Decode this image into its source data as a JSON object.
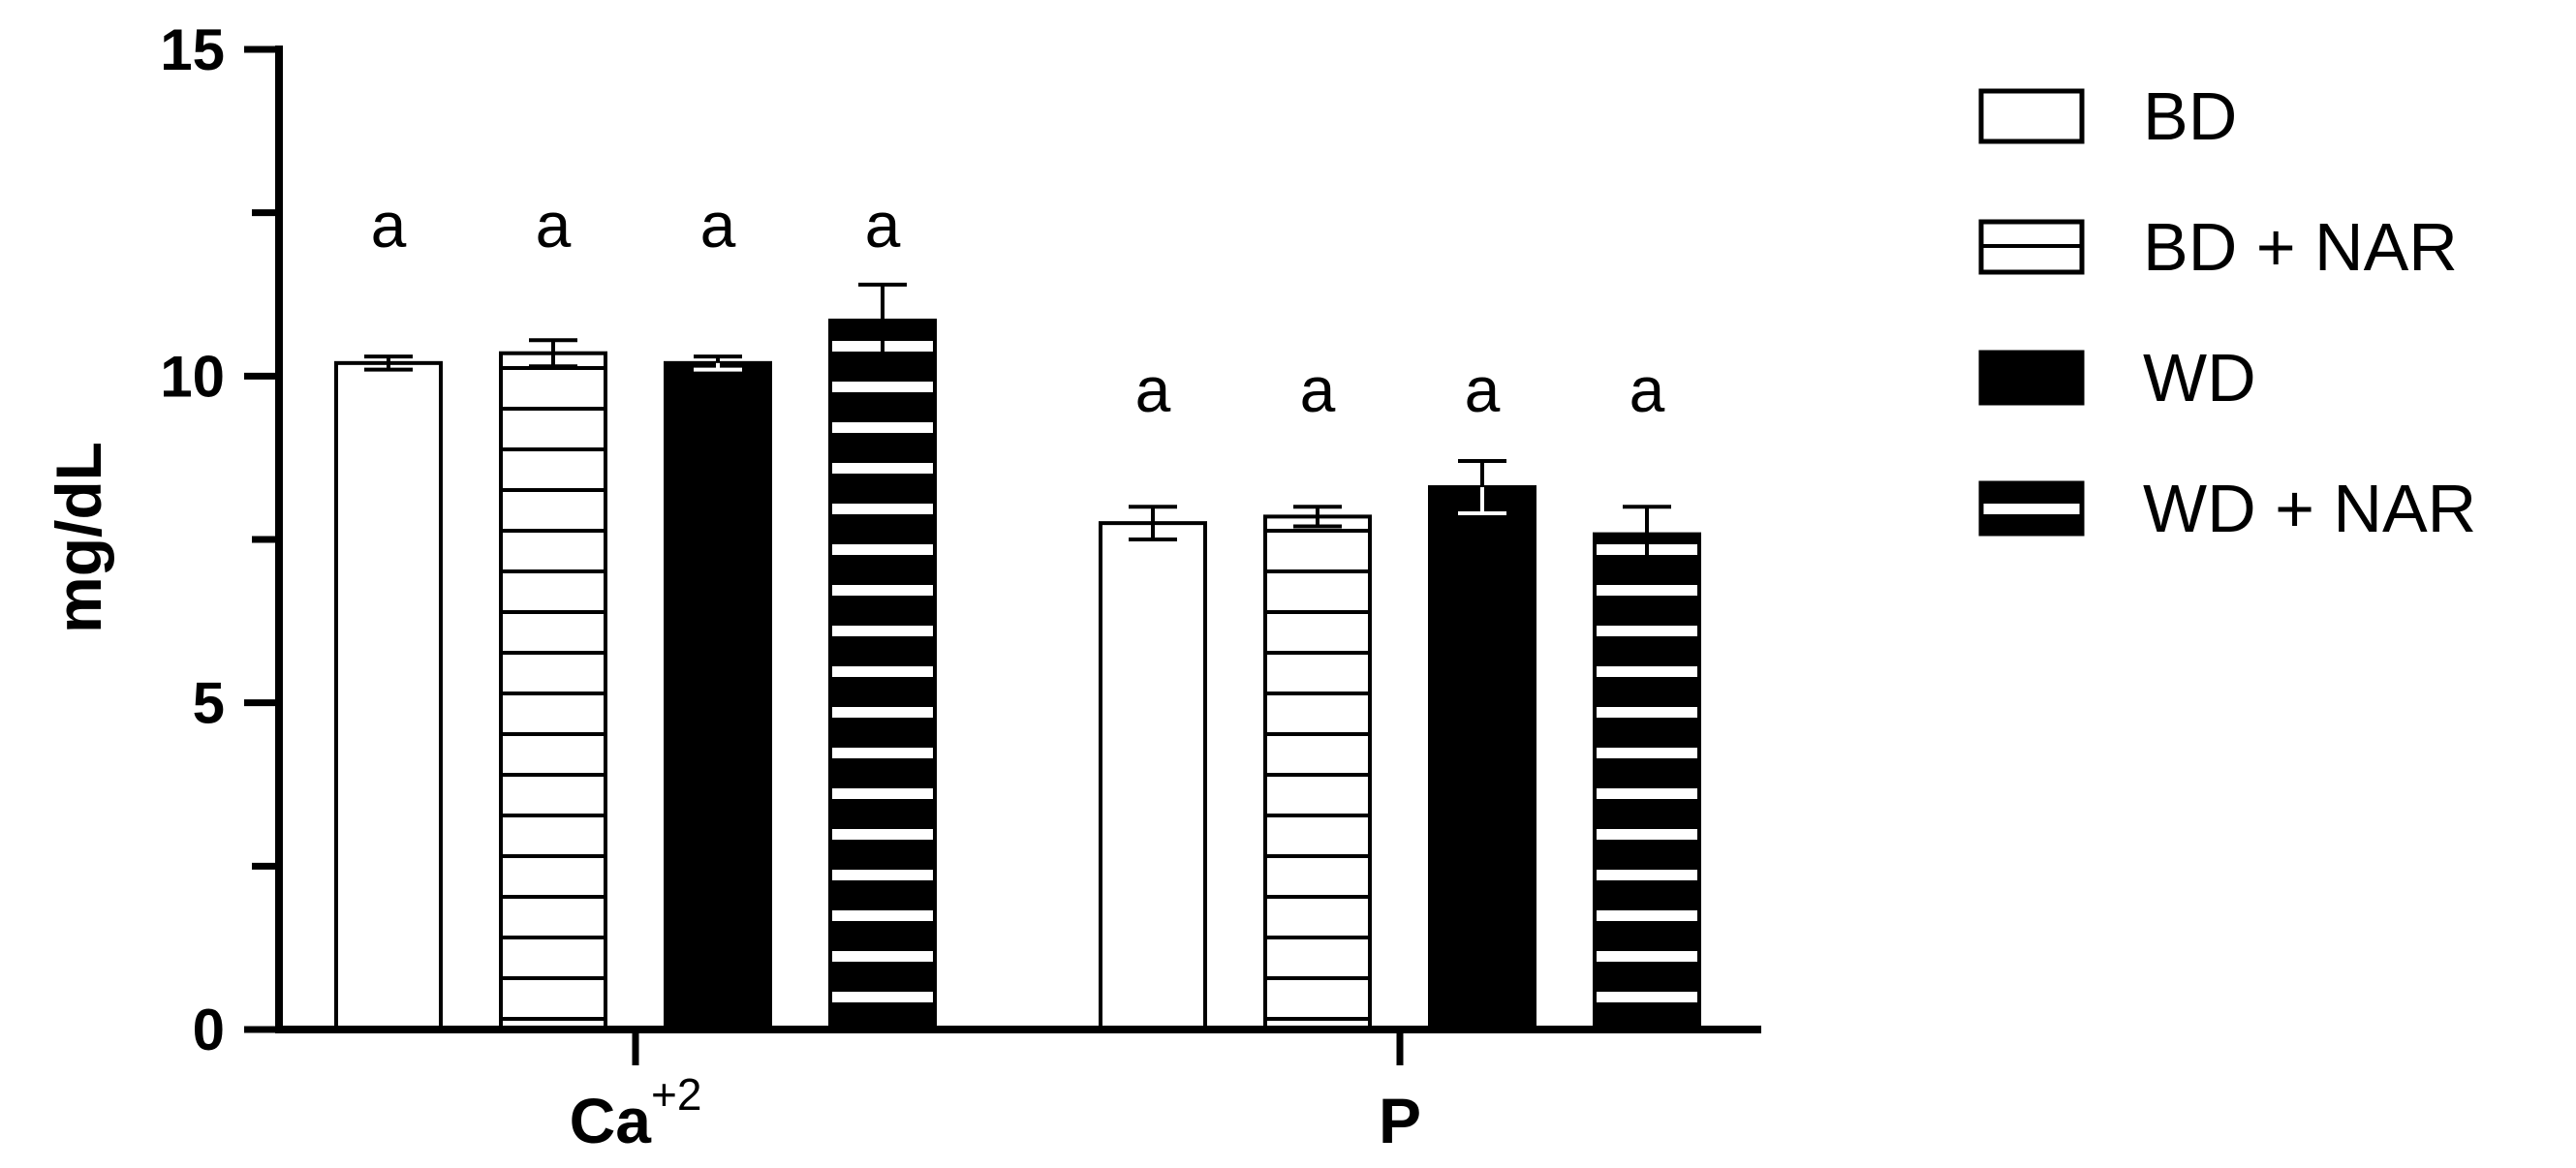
{
  "chart_data": {
    "type": "bar",
    "categories": [
      "Ca",
      "P"
    ],
    "category_superscripts": [
      "+2",
      ""
    ],
    "ylabel": "mg/dL",
    "ylim": [
      0,
      15
    ],
    "yticks": [
      0,
      5,
      10,
      15
    ],
    "series": [
      {
        "name": "BD",
        "values": [
          10.2,
          7.75
        ],
        "errors": [
          0.1,
          0.25
        ],
        "pattern": "open",
        "significance": [
          "a",
          "a"
        ]
      },
      {
        "name": "BD + NAR",
        "values": [
          10.35,
          7.85
        ],
        "errors": [
          0.2,
          0.15
        ],
        "pattern": "thin-stripes",
        "significance": [
          "a",
          "a"
        ]
      },
      {
        "name": "WD",
        "values": [
          10.2,
          8.3
        ],
        "errors": [
          0.1,
          0.4
        ],
        "pattern": "solid",
        "significance": [
          "a",
          "a"
        ]
      },
      {
        "name": "WD + NAR",
        "values": [
          10.85,
          7.58
        ],
        "errors": [
          0.55,
          0.42
        ],
        "pattern": "thick-stripes",
        "significance": [
          "a",
          "a"
        ]
      }
    ],
    "legend_position": "right",
    "grid": false
  }
}
